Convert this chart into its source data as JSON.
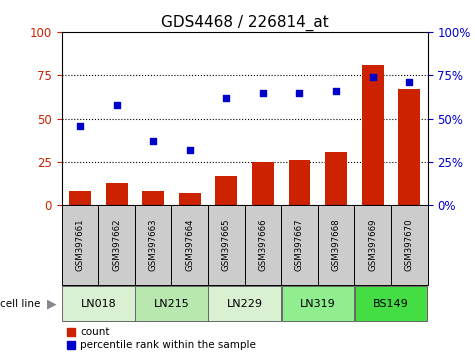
{
  "title": "GDS4468 / 226814_at",
  "samples": [
    "GSM397661",
    "GSM397662",
    "GSM397663",
    "GSM397664",
    "GSM397665",
    "GSM397666",
    "GSM397667",
    "GSM397668",
    "GSM397669",
    "GSM397670"
  ],
  "count_values": [
    8,
    13,
    8,
    7,
    17,
    25,
    26,
    31,
    81,
    67
  ],
  "percentile_values": [
    46,
    58,
    37,
    32,
    62,
    65,
    65,
    66,
    74,
    71
  ],
  "cell_lines": [
    {
      "name": "LN018",
      "indices": [
        0,
        1
      ],
      "color": "#d9f0d3"
    },
    {
      "name": "LN215",
      "indices": [
        2,
        3
      ],
      "color": "#b8e8b0"
    },
    {
      "name": "LN229",
      "indices": [
        4,
        5
      ],
      "color": "#d9f0d3"
    },
    {
      "name": "LN319",
      "indices": [
        6,
        7
      ],
      "color": "#90ee90"
    },
    {
      "name": "BS149",
      "indices": [
        8,
        9
      ],
      "color": "#44dd44"
    }
  ],
  "bar_color": "#cc2200",
  "dot_color": "#0000cc",
  "left_axis_color": "#cc2200",
  "right_axis_color": "#0000cc",
  "yticks": [
    0,
    25,
    50,
    75,
    100
  ],
  "legend_count_color": "#cc2200",
  "legend_pct_color": "#0000cc",
  "label_count": "count",
  "label_pct": "percentile rank within the sample",
  "cell_line_label": "cell line",
  "sample_box_color": "#cccccc",
  "title_fontsize": 11
}
